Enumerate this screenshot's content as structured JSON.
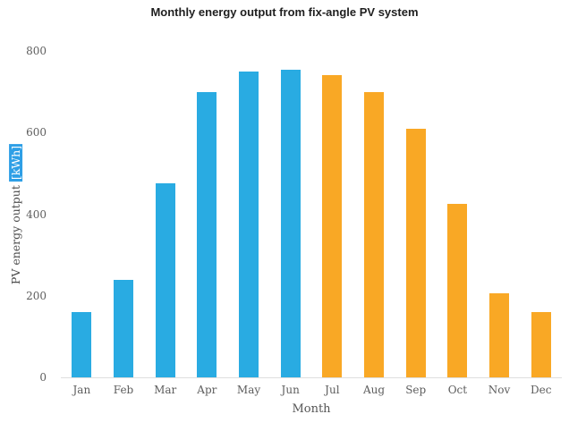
{
  "chart_data": {
    "type": "bar",
    "title": "Monthly energy output from fix-angle PV system",
    "categories": [
      "Jan",
      "Feb",
      "Mar",
      "Apr",
      "May",
      "Jun",
      "Jul",
      "Aug",
      "Sep",
      "Oct",
      "Nov",
      "Dec"
    ],
    "values": [
      160,
      240,
      475,
      700,
      750,
      755,
      740,
      700,
      610,
      425,
      205,
      160
    ],
    "bar_colors": [
      "#29abe2",
      "#29abe2",
      "#29abe2",
      "#29abe2",
      "#29abe2",
      "#29abe2",
      "#f9a825",
      "#f9a825",
      "#f9a825",
      "#f9a825",
      "#f9a825",
      "#f9a825"
    ],
    "xlabel": "Month",
    "ylabel_prefix": "PV energy output ",
    "ylabel_unit": "[kWh]",
    "ylim": [
      0,
      800
    ],
    "yticks": [
      0,
      200,
      400,
      600,
      800
    ],
    "grid": false,
    "legend": "none",
    "colors": {
      "series_first_half": "#29abe2",
      "series_second_half": "#f9a825",
      "ylabel_highlight_bg": "#2e9fe6",
      "ylabel_highlight_text": "#ffffff",
      "tick_text": "#5d5d5d",
      "title_text": "#1f1f1f"
    }
  }
}
